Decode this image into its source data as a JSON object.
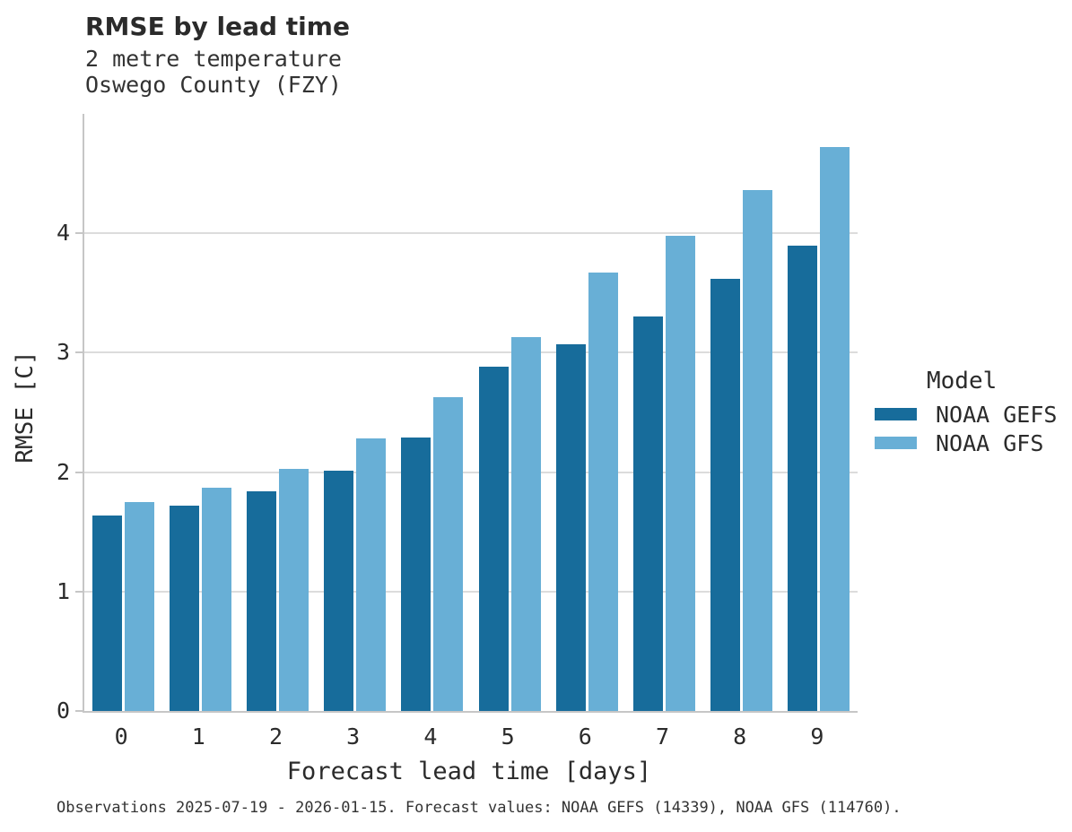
{
  "header": {
    "title": "RMSE by lead time",
    "subtitle1": "2 metre temperature",
    "subtitle2": "Oswego County (FZY)"
  },
  "chart_data": {
    "type": "bar",
    "title": "RMSE by lead time",
    "subtitle": [
      "2 metre temperature",
      "Oswego County (FZY)"
    ],
    "categories": [
      "0",
      "1",
      "2",
      "3",
      "4",
      "5",
      "6",
      "7",
      "8",
      "9"
    ],
    "series": [
      {
        "name": "NOAA GEFS",
        "color": "#176c9b",
        "values": [
          1.64,
          1.72,
          1.84,
          2.01,
          2.29,
          2.88,
          3.07,
          3.3,
          3.62,
          3.9
        ]
      },
      {
        "name": "NOAA GFS",
        "color": "#68afd6",
        "values": [
          1.75,
          1.87,
          2.03,
          2.28,
          2.63,
          3.13,
          3.67,
          3.98,
          4.36,
          4.72
        ]
      }
    ],
    "xlabel": "Forecast lead time [days]",
    "ylabel": "RMSE [C]",
    "ylim": [
      0,
      5
    ],
    "yticks": [
      0,
      1,
      2,
      3,
      4
    ],
    "grid": "horizontal",
    "legend_title": "Model",
    "legend_position": "right",
    "gridline_color": "#dcdcdc",
    "axis_color": "#c6c6c6"
  },
  "legend": {
    "title": "Model",
    "items": [
      {
        "label": "NOAA GEFS",
        "color": "#176c9b"
      },
      {
        "label": "NOAA GFS",
        "color": "#68afd6"
      }
    ]
  },
  "caption": "Observations 2025-07-19 - 2026-01-15. Forecast values: NOAA GEFS (14339), NOAA GFS (114760)."
}
